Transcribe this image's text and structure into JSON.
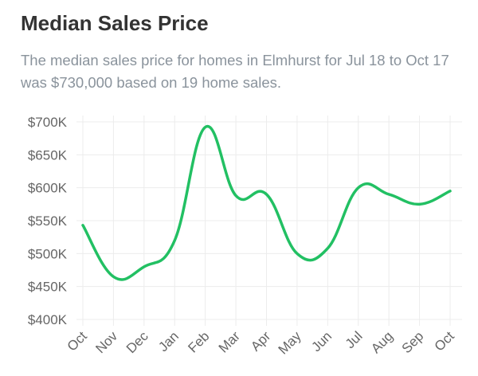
{
  "header": {
    "title": "Median Sales Price",
    "subtitle": "The median sales price for homes in Elmhurst for Jul 18 to Oct 17 was $730,000 based on 19 home sales."
  },
  "chart_data": {
    "type": "line",
    "title": "",
    "xlabel": "",
    "ylabel": "",
    "categories": [
      "Oct",
      "Nov",
      "Dec",
      "Jan",
      "Feb",
      "Mar",
      "Apr",
      "May",
      "Jun",
      "Jul",
      "Aug",
      "Sep",
      "Oct"
    ],
    "series": [
      {
        "values": [
          543000,
          465000,
          480000,
          520000,
          692000,
          588000,
          590000,
          500000,
          508000,
          600000,
          590000,
          575000,
          595000
        ],
        "color": "#22c063"
      }
    ],
    "ylim": [
      400000,
      700000
    ],
    "yticks": [
      "$400K",
      "$450K",
      "$500K",
      "$550K",
      "$600K",
      "$650K",
      "$700K"
    ],
    "grid": true,
    "smooth": true
  }
}
